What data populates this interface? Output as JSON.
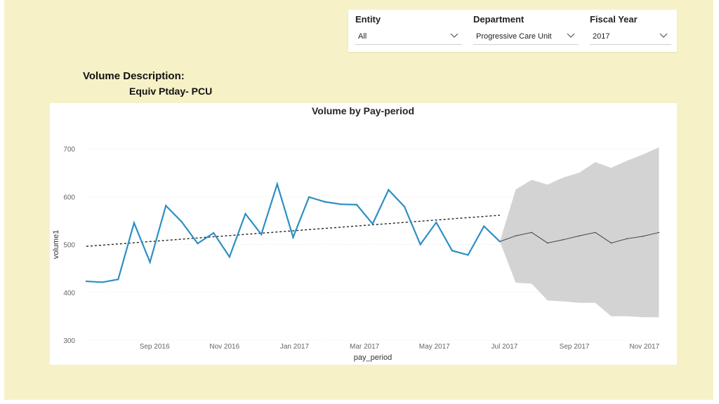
{
  "filters": {
    "entity": {
      "label": "Entity",
      "value": "All"
    },
    "department": {
      "label": "Department",
      "value": "Progressive Care Unit"
    },
    "fiscal_year": {
      "label": "Fiscal Year",
      "value": "2017"
    }
  },
  "volume_description": {
    "label": "Volume Description:",
    "value": "Equiv Ptday- PCU"
  },
  "colors": {
    "background": "#f7f1c8",
    "actual_line": "#2d8fc4",
    "forecast_line": "#444444",
    "confidence_band": "#d3d3d3",
    "trend_line": "#222222"
  },
  "chart_data": {
    "type": "line",
    "title": "Volume by Pay-period",
    "xlabel": "pay_period",
    "ylabel": "volume1",
    "ylim": [
      300,
      700
    ],
    "yticks": [
      300,
      400,
      500,
      600,
      700
    ],
    "xticks": [
      "Sep 2016",
      "Nov 2016",
      "Jan 2017",
      "Mar 2017",
      "May 2017",
      "Jul 2017",
      "Sep 2017",
      "Nov 2017"
    ],
    "grid": true,
    "series": [
      {
        "role": "actual",
        "values": [
          423,
          421,
          427,
          545,
          463,
          581,
          547,
          502,
          524,
          474,
          564,
          521,
          626,
          515,
          599,
          589,
          584,
          583,
          543,
          614,
          579,
          500,
          546,
          487,
          478,
          538,
          506
        ]
      },
      {
        "role": "forecast",
        "values": [
          506,
          518,
          525,
          503,
          510,
          518,
          525,
          503,
          512,
          517,
          525
        ]
      }
    ],
    "confidence_band": {
      "upper": [
        506,
        615,
        635,
        625,
        640,
        650,
        672,
        660,
        675,
        688,
        703
      ],
      "lower": [
        506,
        420,
        418,
        383,
        381,
        378,
        378,
        350,
        350,
        348,
        348
      ]
    },
    "trend_line": {
      "start": 496,
      "end": 561
    }
  }
}
